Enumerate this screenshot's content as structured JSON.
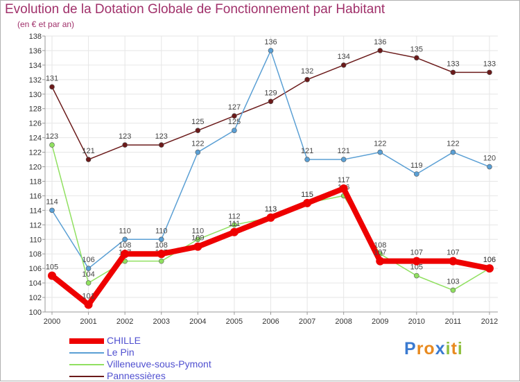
{
  "chart_data": {
    "type": "line",
    "title": "Evolution de la Dotation Globale de Fonctionnement par Habitant",
    "subtitle": "(en € et par an)",
    "xlabel": "",
    "ylabel": "",
    "ylim": [
      100,
      138
    ],
    "ytick_step": 2,
    "grid": true,
    "legend_position": "bottom-left",
    "categories": [
      "2000",
      "2001",
      "2002",
      "2003",
      "2004",
      "2005",
      "2006",
      "2007",
      "2008",
      "2009",
      "2010",
      "2011",
      "2012"
    ],
    "series": [
      {
        "name": "Pannessières",
        "color": "#6b1a1a",
        "values": [
          131,
          121,
          123,
          123,
          125,
          127,
          129,
          132,
          134,
          136,
          135,
          133,
          133
        ]
      },
      {
        "name": "Le Pin",
        "color": "#5a9fd4",
        "values": [
          114,
          106,
          110,
          110,
          122,
          125,
          136,
          121,
          121,
          122,
          119,
          122,
          120
        ]
      },
      {
        "name": "Villeneuve-sous-Pymont",
        "color": "#90e060",
        "values": [
          123,
          104,
          107,
          107,
          110,
          112,
          113,
          115,
          116,
          108,
          105,
          103,
          106
        ]
      },
      {
        "name": "CHILLE",
        "color": "#ee0000",
        "values": [
          105,
          101,
          108,
          108,
          109,
          111,
          113,
          115,
          117,
          107,
          107,
          107,
          106
        ]
      }
    ]
  },
  "legend": {
    "items": [
      {
        "label": "CHILLE",
        "color": "#ee0000",
        "weight": "thick"
      },
      {
        "label": "Le Pin",
        "color": "#5a9fd4",
        "weight": "thin"
      },
      {
        "label": "Villeneuve-sous-Pymont",
        "color": "#90e060",
        "weight": "thin"
      },
      {
        "label": "Pannessières",
        "color": "#6b1a1a",
        "weight": "thin"
      }
    ]
  },
  "logo": {
    "letters": [
      {
        "ch": "P",
        "color": "#3a7ad0"
      },
      {
        "ch": "r",
        "color": "#e88a20"
      },
      {
        "ch": "o",
        "color": "#e88a20"
      },
      {
        "ch": "x",
        "color": "#3a7ad0"
      },
      {
        "ch": "i",
        "color": "#90c040"
      },
      {
        "ch": "t",
        "color": "#e88a20"
      },
      {
        "ch": "i",
        "color": "#90c040"
      }
    ]
  }
}
